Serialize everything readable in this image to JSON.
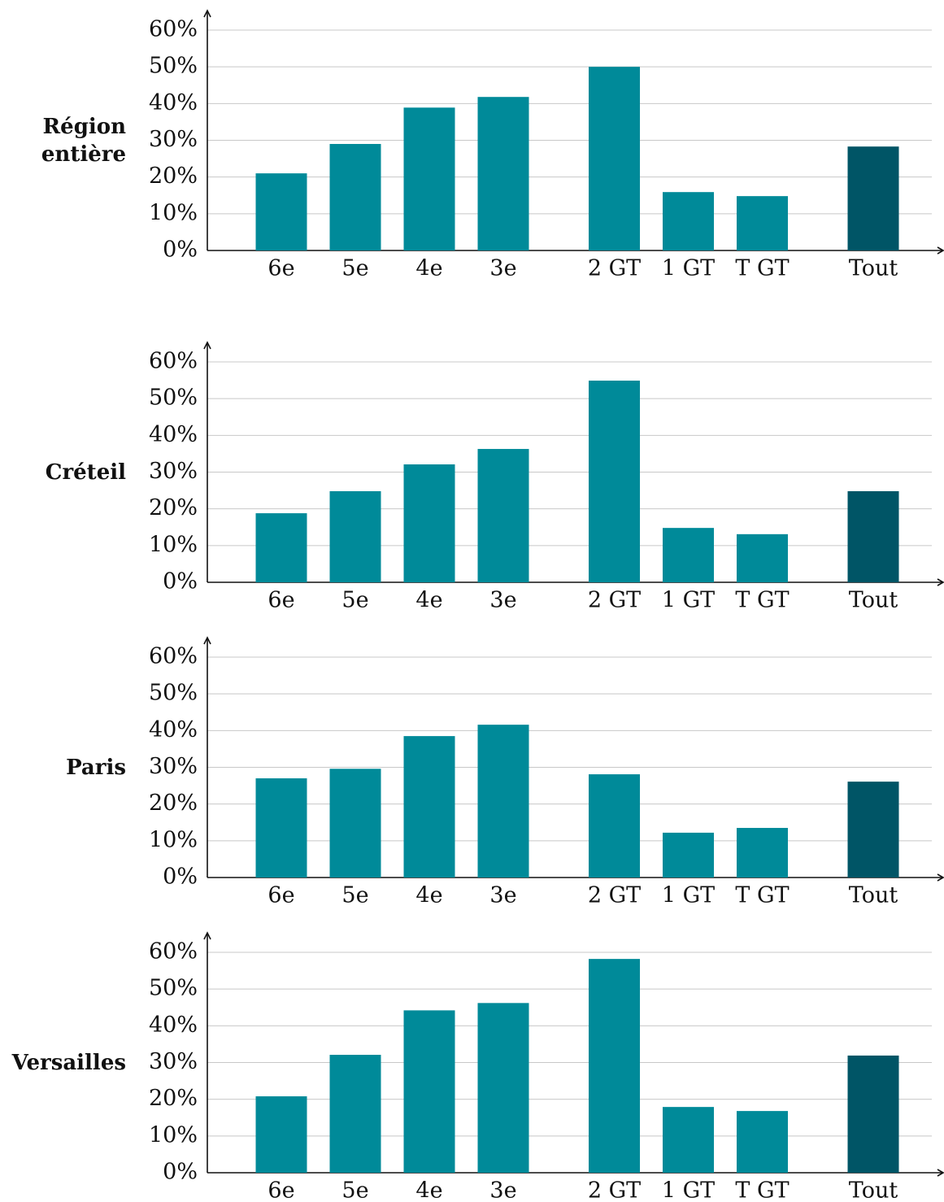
{
  "chart_data": [
    {
      "type": "bar",
      "title": "Région entière",
      "categories": [
        "6e",
        "5e",
        "4e",
        "3e",
        null,
        "2 GT",
        "1 GT",
        "T GT",
        null,
        "Tout"
      ],
      "values": [
        21.0,
        29.0,
        38.9,
        41.8,
        null,
        50.0,
        15.9,
        14.8,
        null,
        28.3
      ],
      "colors": [
        "#008a99",
        "#008a99",
        "#008a99",
        "#008a99",
        null,
        "#008a99",
        "#008a99",
        "#008a99",
        null,
        "#005566"
      ],
      "ylim": [
        0,
        60
      ],
      "yticks": [
        {
          "value": 0,
          "label": "0%"
        },
        {
          "value": 10,
          "label": "10%"
        },
        {
          "value": 20,
          "label": "20%"
        },
        {
          "value": 30,
          "label": "30%"
        },
        {
          "value": 40,
          "label": "40%"
        },
        {
          "value": 50,
          "label": "50%"
        },
        {
          "value": 60,
          "label": "60%"
        }
      ],
      "grid": true
    },
    {
      "type": "bar",
      "title": "Créteil",
      "categories": [
        "6e",
        "5e",
        "4e",
        "3e",
        null,
        "2 GT",
        "1 GT",
        "T GT",
        null,
        "Tout"
      ],
      "values": [
        18.8,
        24.8,
        32.1,
        36.3,
        null,
        54.9,
        14.8,
        13.1,
        null,
        24.8
      ],
      "colors": [
        "#008a99",
        "#008a99",
        "#008a99",
        "#008a99",
        null,
        "#008a99",
        "#008a99",
        "#008a99",
        null,
        "#005566"
      ],
      "ylim": [
        0,
        60
      ],
      "yticks": [
        {
          "value": 0,
          "label": "0%"
        },
        {
          "value": 10,
          "label": "10%"
        },
        {
          "value": 20,
          "label": "20%"
        },
        {
          "value": 30,
          "label": "30%"
        },
        {
          "value": 40,
          "label": "40%"
        },
        {
          "value": 50,
          "label": "50%"
        },
        {
          "value": 60,
          "label": "60%"
        }
      ],
      "grid": true
    },
    {
      "type": "bar",
      "title": "Paris",
      "categories": [
        "6e",
        "5e",
        "4e",
        "3e",
        null,
        "2 GT",
        "1 GT",
        "T GT",
        null,
        "Tout"
      ],
      "values": [
        27.0,
        29.6,
        38.5,
        41.6,
        null,
        28.1,
        12.2,
        13.5,
        null,
        26.1
      ],
      "colors": [
        "#008a99",
        "#008a99",
        "#008a99",
        "#008a99",
        null,
        "#008a99",
        "#008a99",
        "#008a99",
        null,
        "#005566"
      ],
      "ylim": [
        0,
        60
      ],
      "yticks": [
        {
          "value": 0,
          "label": "0%"
        },
        {
          "value": 10,
          "label": "10%"
        },
        {
          "value": 20,
          "label": "20%"
        },
        {
          "value": 30,
          "label": "30%"
        },
        {
          "value": 40,
          "label": "40%"
        },
        {
          "value": 50,
          "label": "50%"
        },
        {
          "value": 60,
          "label": "60%"
        }
      ],
      "grid": true
    },
    {
      "type": "bar",
      "title": "Versailles",
      "categories": [
        "6e",
        "5e",
        "4e",
        "3e",
        null,
        "2 GT",
        "1 GT",
        "T GT",
        null,
        "Tout"
      ],
      "values": [
        20.8,
        32.1,
        44.2,
        46.2,
        null,
        58.2,
        17.9,
        16.8,
        null,
        31.9
      ],
      "colors": [
        "#008a99",
        "#008a99",
        "#008a99",
        "#008a99",
        null,
        "#008a99",
        "#008a99",
        "#008a99",
        null,
        "#005566"
      ],
      "ylim": [
        0,
        60
      ],
      "yticks": [
        {
          "value": 0,
          "label": "0%"
        },
        {
          "value": 10,
          "label": "10%"
        },
        {
          "value": 20,
          "label": "20%"
        },
        {
          "value": 30,
          "label": "30%"
        },
        {
          "value": 40,
          "label": "40%"
        },
        {
          "value": 50,
          "label": "50%"
        },
        {
          "value": 60,
          "label": "60%"
        }
      ],
      "grid": true
    }
  ]
}
